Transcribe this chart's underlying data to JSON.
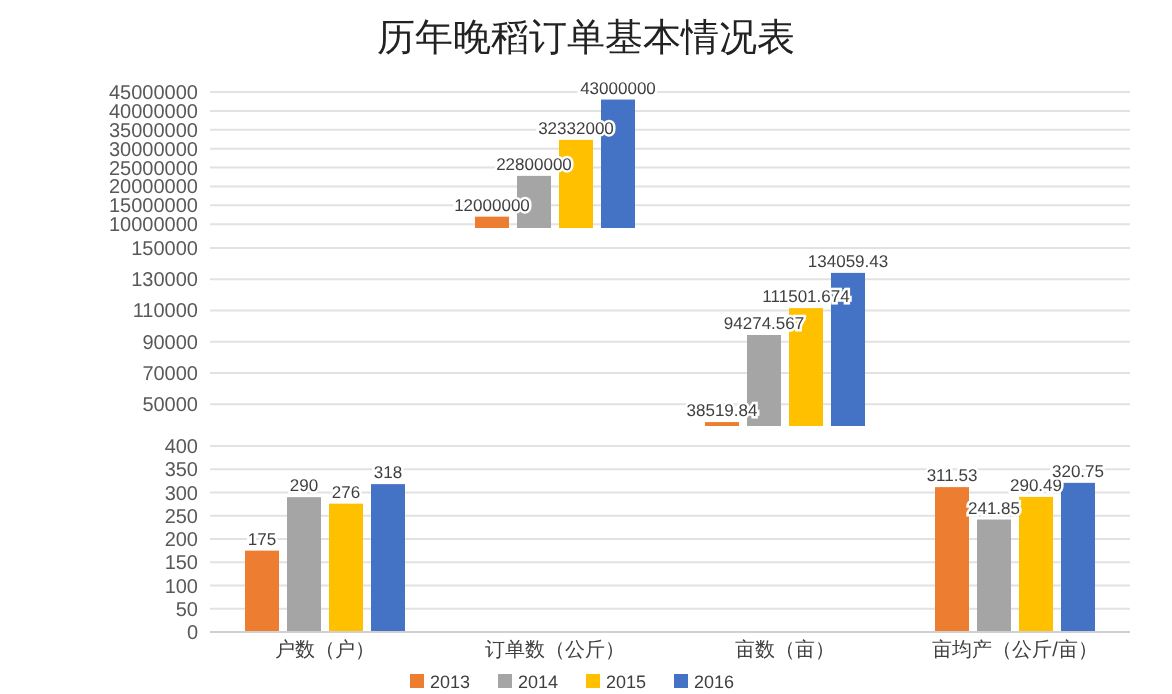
{
  "chart_data": [
    {
      "type": "bar",
      "title": "历年晚稻订单基本情况表",
      "categories": [
        null,
        null,
        null,
        null
      ],
      "series": [
        {
          "color": "#ed7d31",
          "values": [
            null,
            12000000,
            null,
            null
          ]
        },
        {
          "color": "#a5a5a5",
          "values": [
            null,
            22800000,
            null,
            null
          ]
        },
        {
          "color": "#ffc000",
          "values": [
            null,
            32332000,
            null,
            null
          ]
        },
        {
          "color": "#4472c4",
          "values": [
            null,
            43000000,
            null,
            null
          ]
        }
      ],
      "ylim": [
        9000000,
        45000000
      ],
      "yticks": [
        10000000,
        15000000,
        20000000,
        25000000,
        30000000,
        35000000,
        40000000,
        45000000
      ],
      "grid": "y",
      "data_labels": true,
      "tick_labels": "y"
    },
    {
      "type": "bar",
      "categories": [
        null,
        null,
        null,
        null
      ],
      "series": [
        {
          "color": "#ed7d31",
          "values": [
            null,
            null,
            38519.84,
            null
          ]
        },
        {
          "color": "#a5a5a5",
          "values": [
            null,
            null,
            94274.567,
            null
          ]
        },
        {
          "color": "#ffc000",
          "values": [
            null,
            null,
            111501.674,
            null
          ]
        },
        {
          "color": "#4472c4",
          "values": [
            null,
            null,
            134059.43,
            null
          ]
        }
      ],
      "ylim": [
        36000,
        150000
      ],
      "yticks": [
        50000,
        70000,
        90000,
        110000,
        130000,
        150000
      ],
      "grid": "y",
      "data_labels": true,
      "tick_labels": "y"
    },
    {
      "type": "bar",
      "categories": [
        "户数（户）",
        "订单数（公斤）",
        "亩数（亩）",
        "亩均产（公斤/亩）"
      ],
      "series": [
        {
          "name": "2013",
          "color": "#ed7d31",
          "values": [
            175,
            null,
            null,
            311.53
          ]
        },
        {
          "name": "2014",
          "color": "#a5a5a5",
          "values": [
            290,
            null,
            null,
            241.85
          ]
        },
        {
          "name": "2015",
          "color": "#ffc000",
          "values": [
            276,
            null,
            null,
            290.49
          ]
        },
        {
          "name": "2016",
          "color": "#4472c4",
          "values": [
            318,
            null,
            null,
            320.75
          ]
        }
      ],
      "ylim": [
        0,
        400
      ],
      "yticks": [
        0,
        50,
        100,
        150,
        200,
        250,
        300,
        350,
        400
      ],
      "grid": "y",
      "data_labels": true,
      "legend": "bottom"
    }
  ]
}
